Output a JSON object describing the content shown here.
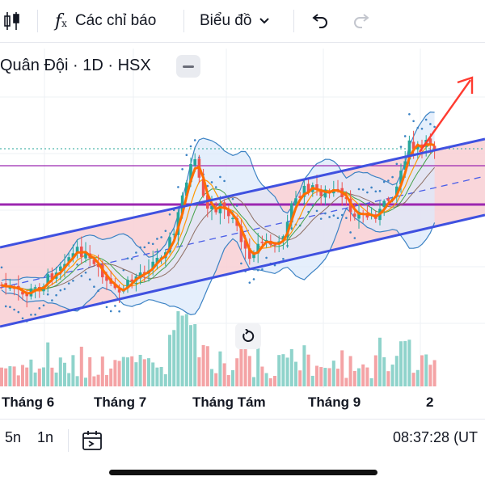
{
  "toolbar": {
    "indicators_label": "Các chỉ báo",
    "indicators_icon": "fx-icon",
    "chart_type_label": "Biểu đồ",
    "chart_type_icon": "candlestick-icon",
    "undo_icon": "undo-icon",
    "redo_icon": "redo-icon",
    "dropdown_icon": "chevron-down-icon"
  },
  "legend": {
    "symbol": "Quân Đội · 1D · HSX",
    "collapse_icon": "minus-icon"
  },
  "chart_data": {
    "type": "candlestick",
    "x_ticks": [
      "Tháng 6",
      "Tháng 7",
      "Tháng Tám",
      "Tháng 9",
      "2"
    ],
    "overlays": [
      "ascending channel",
      "bollinger bands",
      "moving averages",
      "parabolic SAR",
      "horizontal levels",
      "volume"
    ],
    "annotation": "red arrow pointing up",
    "colors": {
      "up": "#26a69a",
      "down": "#ef5350",
      "channel": "#3f51e0",
      "level": "#9c27b0",
      "arrow": "#ff3b30",
      "ma_fast": "#ff6d00"
    }
  },
  "reset_icon": "reset-icon",
  "bottom": {
    "range_5y": "5n",
    "range_1y": "1n",
    "goto_date_icon": "calendar-goto-icon",
    "time": "08:37:28 (UT"
  }
}
